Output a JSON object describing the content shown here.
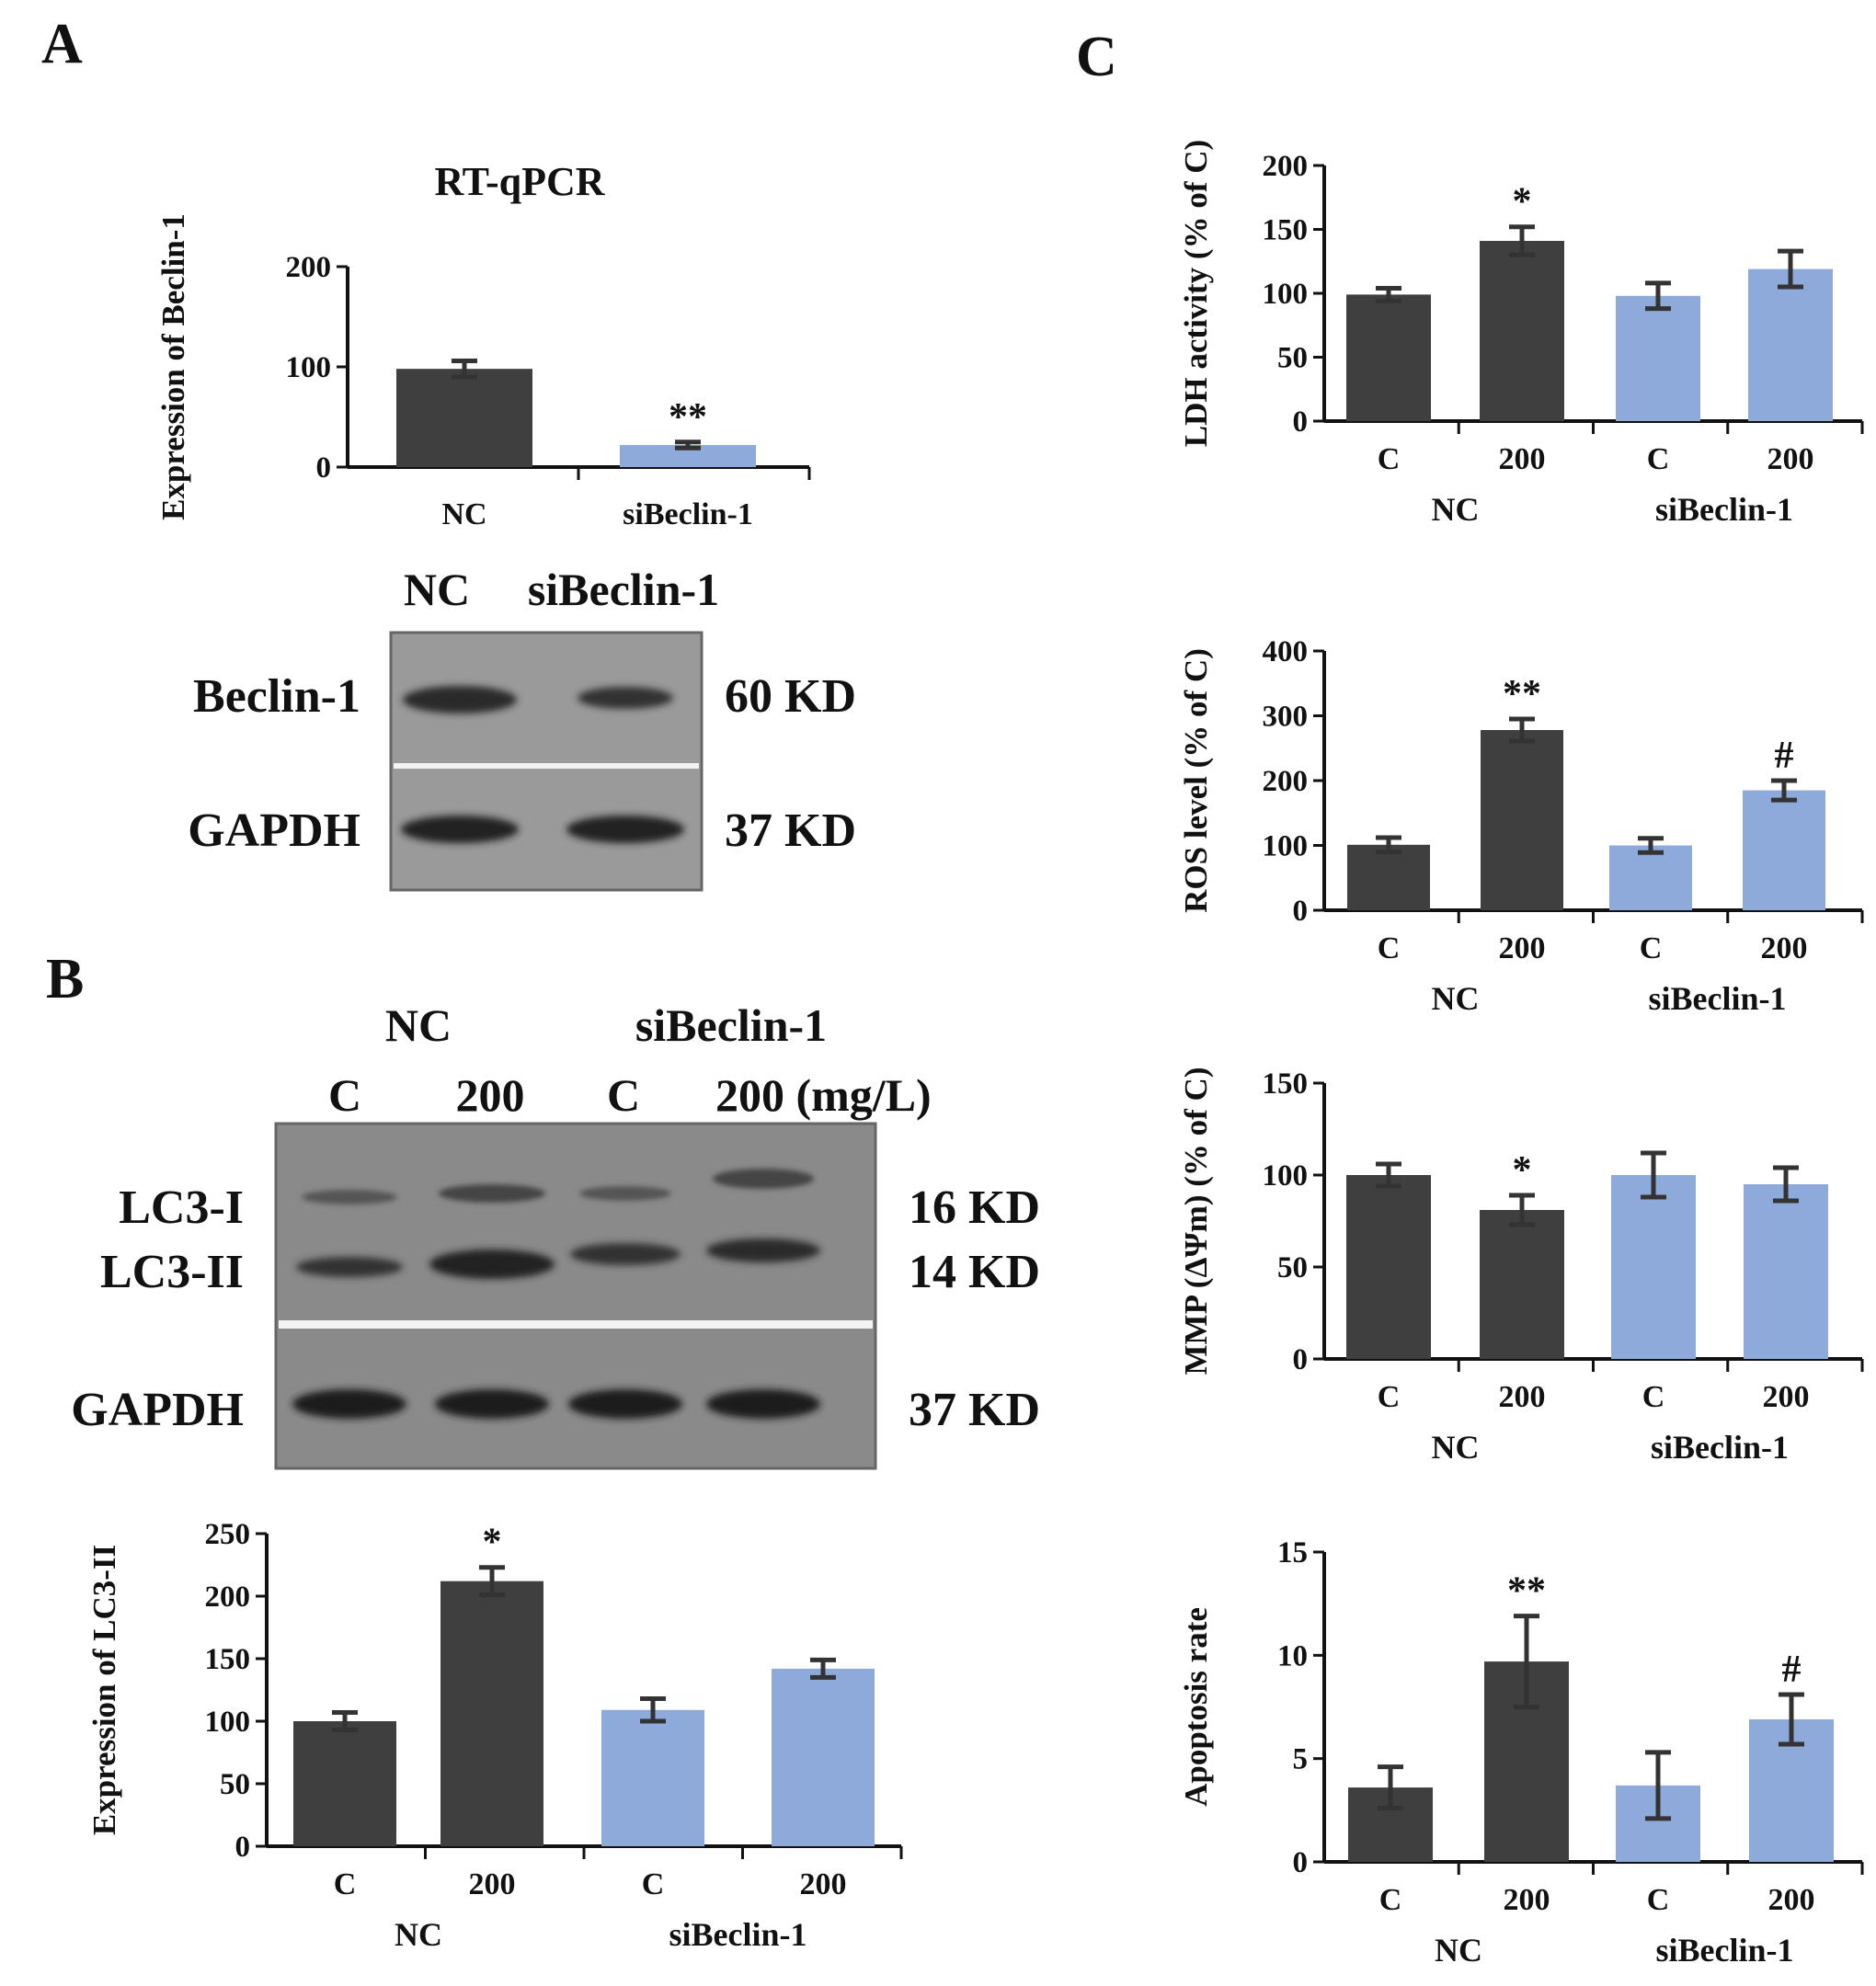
{
  "panels": {
    "A": {
      "letter": "A",
      "chart_title": "RT-qPCR",
      "blot": {
        "header": [
          "NC",
          "siBeclin-1"
        ],
        "rows": [
          {
            "label": "Beclin-1",
            "size": "60 KD"
          },
          {
            "label": "GAPDH",
            "size": "37 KD"
          }
        ]
      }
    },
    "B": {
      "letter": "B",
      "blot": {
        "groups": [
          "NC",
          "siBeclin-1"
        ],
        "lanes": [
          "C",
          "200",
          "C",
          "200 (mg/L)"
        ],
        "rows": [
          {
            "label": "LC3-I",
            "size": "16 KD"
          },
          {
            "label": "LC3-II",
            "size": "14 KD"
          },
          {
            "label": "GAPDH",
            "size": "37 KD"
          }
        ]
      }
    },
    "C": {
      "letter": "C"
    }
  },
  "colors": {
    "dark": "#3f3f3f",
    "light": "#8eaadb",
    "axis": "#111111",
    "blot_bg": "#8a8a8a"
  },
  "chart_data": [
    {
      "id": "A-rtqpcr",
      "type": "bar",
      "title": "RT-qPCR",
      "ylabel": "Expression of Beclin-1",
      "ylim": [
        0,
        200
      ],
      "yticks": [
        0,
        100,
        200
      ],
      "categories": [
        "NC",
        "siBeclin-1"
      ],
      "groups": [],
      "values": [
        98,
        22
      ],
      "errors": [
        8,
        3
      ],
      "colors": [
        "dark",
        "light"
      ],
      "annotations": [
        "",
        "**"
      ]
    },
    {
      "id": "B-lc3",
      "type": "bar",
      "ylabel": "Expression of LC3-II",
      "ylim": [
        0,
        250
      ],
      "yticks": [
        0,
        50,
        100,
        150,
        200,
        250
      ],
      "categories": [
        "C",
        "200",
        "C",
        "200"
      ],
      "groups": [
        "NC",
        "siBeclin-1"
      ],
      "values": [
        100,
        212,
        109,
        142
      ],
      "errors": [
        7,
        11,
        9,
        7
      ],
      "colors": [
        "dark",
        "dark",
        "light",
        "light"
      ],
      "annotations": [
        "",
        "*",
        "",
        ""
      ]
    },
    {
      "id": "C-ldh",
      "type": "bar",
      "ylabel": "LDH activity (% of C)",
      "ylim": [
        0,
        200
      ],
      "yticks": [
        0,
        50,
        100,
        150,
        200
      ],
      "categories": [
        "C",
        "200",
        "C",
        "200"
      ],
      "groups": [
        "NC",
        "siBeclin-1"
      ],
      "values": [
        99,
        141,
        98,
        119
      ],
      "errors": [
        5,
        11,
        10,
        14
      ],
      "colors": [
        "dark",
        "dark",
        "light",
        "light"
      ],
      "annotations": [
        "",
        "*",
        "",
        ""
      ]
    },
    {
      "id": "C-ros",
      "type": "bar",
      "ylabel": "ROS level (% of C)",
      "ylim": [
        0,
        400
      ],
      "yticks": [
        0,
        100,
        200,
        300,
        400
      ],
      "categories": [
        "C",
        "200",
        "C",
        "200"
      ],
      "groups": [
        "NC",
        "siBeclin-1"
      ],
      "values": [
        101,
        278,
        100,
        185
      ],
      "errors": [
        11,
        17,
        11,
        15
      ],
      "colors": [
        "dark",
        "dark",
        "light",
        "light"
      ],
      "annotations": [
        "",
        "**",
        "",
        "#"
      ]
    },
    {
      "id": "C-mmp",
      "type": "bar",
      "ylabel": "MMP (ΔΨm) (% of C)",
      "ylim": [
        0,
        150
      ],
      "yticks": [
        0,
        50,
        100,
        150
      ],
      "categories": [
        "C",
        "200",
        "C",
        "200"
      ],
      "groups": [
        "NC",
        "siBeclin-1"
      ],
      "values": [
        100,
        81,
        100,
        95
      ],
      "errors": [
        6,
        8,
        12,
        9
      ],
      "colors": [
        "dark",
        "dark",
        "light",
        "light"
      ],
      "annotations": [
        "",
        "*",
        "",
        ""
      ]
    },
    {
      "id": "C-apoptosis",
      "type": "bar",
      "ylabel": "Apoptosis rate",
      "ylim": [
        0,
        15
      ],
      "yticks": [
        0,
        5,
        10,
        15
      ],
      "categories": [
        "C",
        "200",
        "C",
        "200"
      ],
      "groups": [
        "NC",
        "siBeclin-1"
      ],
      "values": [
        3.6,
        9.7,
        3.7,
        6.9
      ],
      "errors": [
        1.0,
        2.2,
        1.6,
        1.2
      ],
      "colors": [
        "dark",
        "dark",
        "light",
        "light"
      ],
      "annotations": [
        "",
        "**",
        "",
        "#"
      ]
    }
  ]
}
